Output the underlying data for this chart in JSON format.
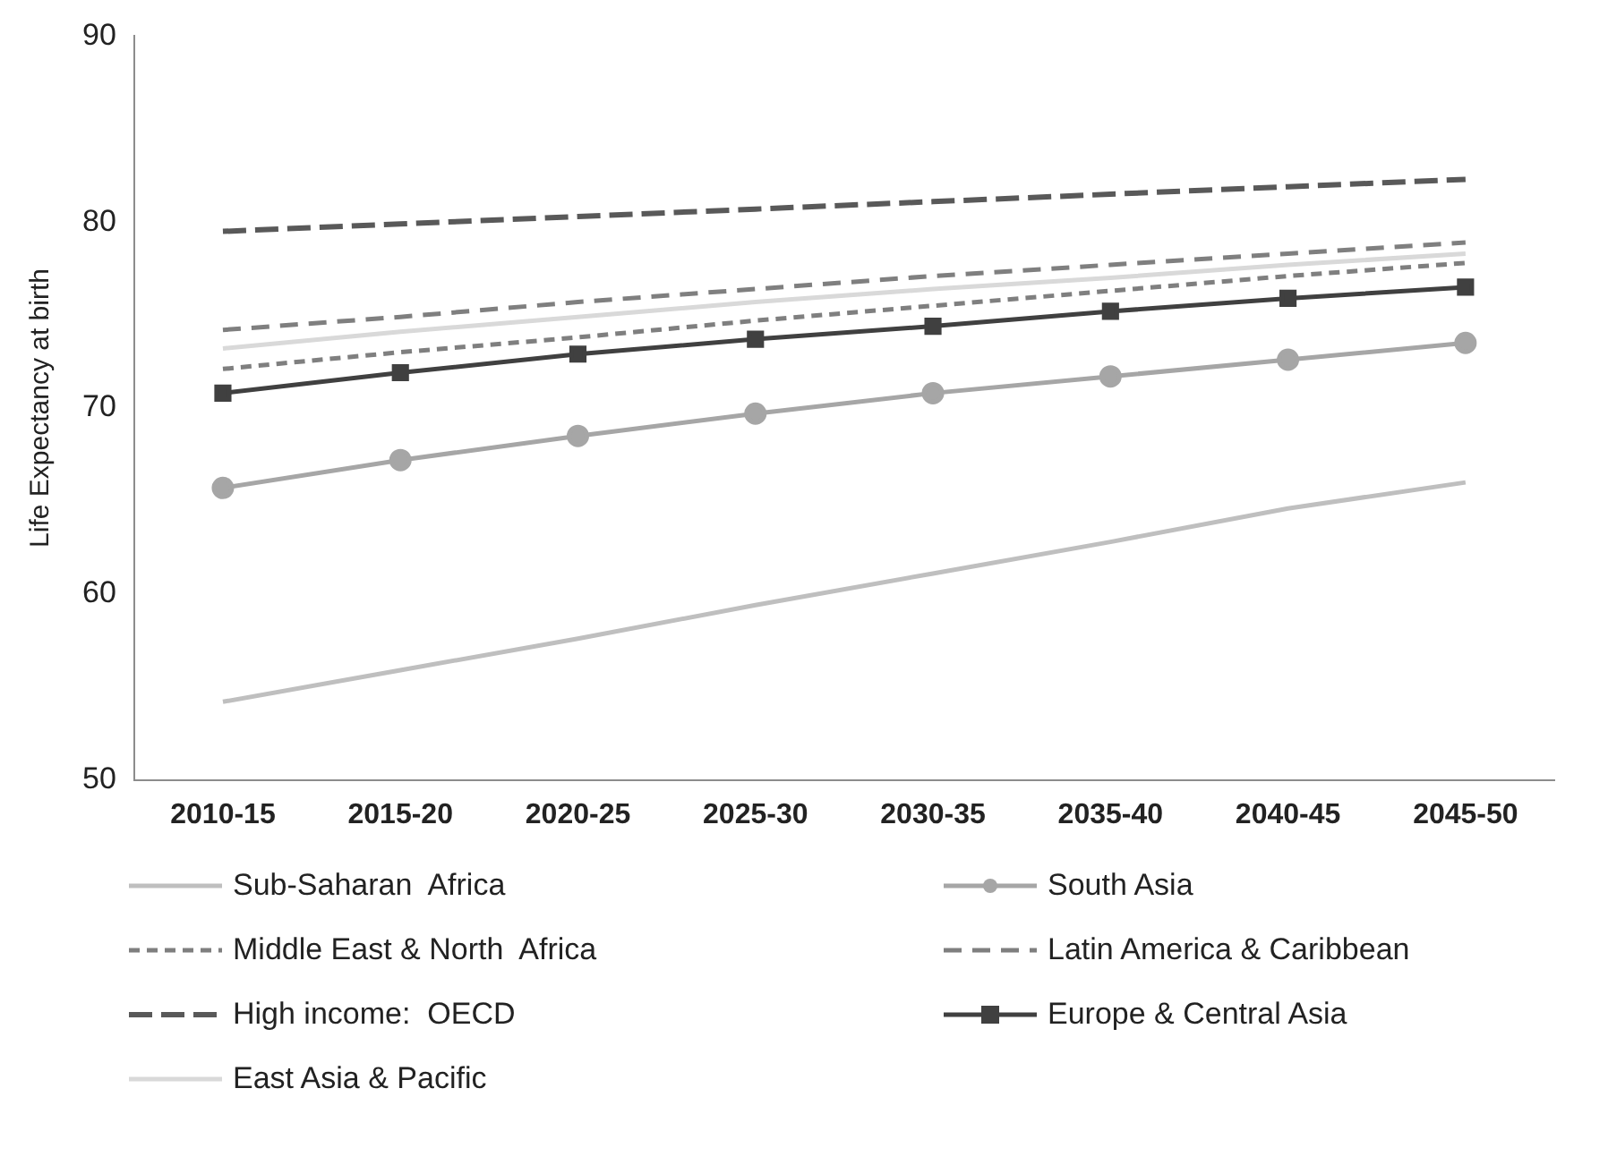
{
  "chart_data": {
    "type": "line",
    "ylabel": "Life Expectancy at birth",
    "categories": [
      "2010-15",
      "2015-20",
      "2020-25",
      "2025-30",
      "2030-35",
      "2035-40",
      "2040-45",
      "2045-50"
    ],
    "ylim": [
      50,
      90
    ],
    "yticks": [
      50,
      60,
      70,
      80,
      90
    ],
    "grid": false,
    "legend": "bottom",
    "series": [
      {
        "name": "Sub-Saharan  Africa",
        "color": "#bfbfbf",
        "line_style": "solid",
        "marker": "none",
        "values": [
          54.2,
          55.9,
          57.6,
          59.4,
          61.1,
          62.8,
          64.6,
          66.0
        ]
      },
      {
        "name": "South Asia",
        "color": "#a6a6a6",
        "line_style": "solid",
        "marker": "circle",
        "values": [
          65.7,
          67.2,
          68.5,
          69.7,
          70.8,
          71.7,
          72.6,
          73.5
        ]
      },
      {
        "name": "Middle East & North  Africa",
        "color": "#7f7f7f",
        "line_style": "dotted",
        "marker": "none",
        "values": [
          72.1,
          73.0,
          73.8,
          74.7,
          75.5,
          76.3,
          77.1,
          77.8
        ]
      },
      {
        "name": "Latin America & Caribbean",
        "color": "#7f7f7f",
        "line_style": "dashed",
        "marker": "none",
        "values": [
          74.2,
          74.9,
          75.7,
          76.4,
          77.1,
          77.7,
          78.3,
          78.9
        ]
      },
      {
        "name": "High income:  OECD",
        "color": "#595959",
        "line_style": "dashed",
        "marker": "none",
        "values": [
          79.5,
          79.9,
          80.3,
          80.7,
          81.1,
          81.5,
          81.9,
          82.3
        ]
      },
      {
        "name": "Europe & Central Asia",
        "color": "#404040",
        "line_style": "solid",
        "marker": "square",
        "values": [
          70.8,
          71.9,
          72.9,
          73.7,
          74.4,
          75.2,
          75.9,
          76.5
        ]
      },
      {
        "name": "East Asia & Pacific",
        "color": "#d9d9d9",
        "line_style": "solid",
        "marker": "none",
        "values": [
          73.2,
          74.1,
          74.9,
          75.7,
          76.4,
          77.0,
          77.7,
          78.3
        ]
      }
    ]
  }
}
